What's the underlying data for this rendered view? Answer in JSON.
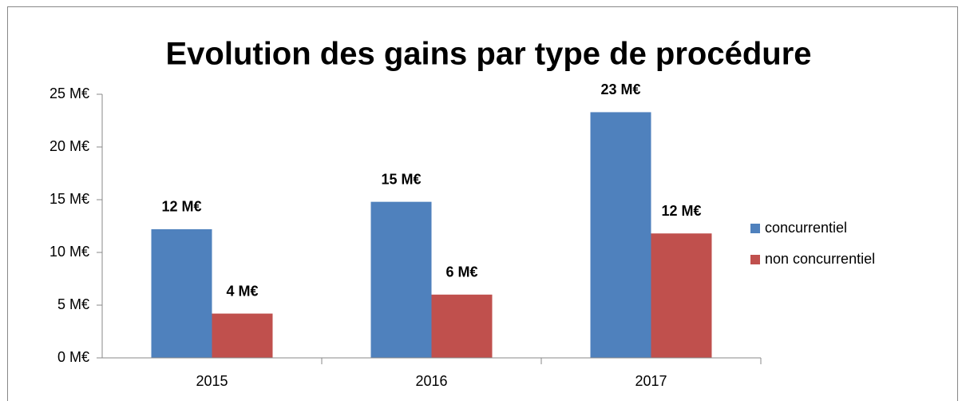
{
  "chart_data": {
    "type": "bar",
    "title": "Evolution des gains par type de procédure",
    "categories": [
      "2015",
      "2016",
      "2017"
    ],
    "series": [
      {
        "name": "concurrentiel",
        "color": "#4f81bd",
        "values": [
          12.2,
          14.8,
          23.3
        ],
        "value_labels": [
          "12 M€",
          "15 M€",
          "23 M€"
        ]
      },
      {
        "name": "non concurrentiel",
        "color": "#c0504d",
        "values": [
          4.2,
          6.0,
          11.8
        ],
        "value_labels": [
          "4 M€",
          "6 M€",
          "12 M€"
        ]
      }
    ],
    "ylim": [
      0,
      25
    ],
    "yticks": [
      {
        "value": 0,
        "label": "0 M€"
      },
      {
        "value": 5,
        "label": "5 M€"
      },
      {
        "value": 10,
        "label": "10 M€"
      },
      {
        "value": 15,
        "label": "15 M€"
      },
      {
        "value": 20,
        "label": "20 M€"
      },
      {
        "value": 25,
        "label": "25 M€"
      }
    ],
    "legend": "right"
  }
}
